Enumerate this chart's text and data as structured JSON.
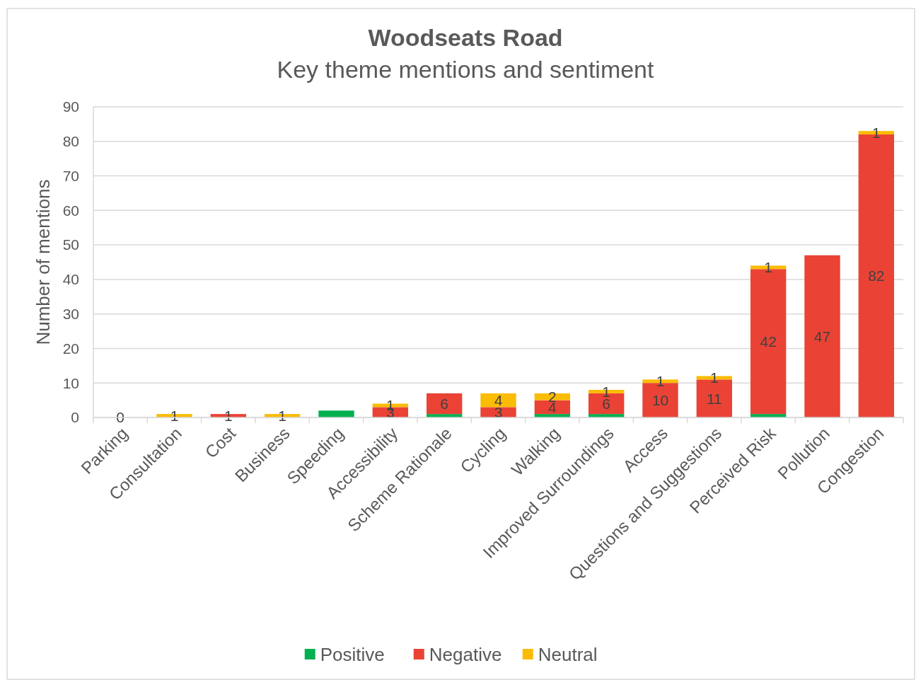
{
  "chart_data": {
    "type": "bar",
    "title": "Woodseats Road",
    "subtitle": "Key theme mentions and sentiment",
    "ylabel": "Number of mentions",
    "categories": [
      "Parking",
      "Consultation",
      "Cost",
      "Business",
      "Speeding",
      "Accessibility",
      "Scheme Rationale",
      "Cycling",
      "Walking",
      "Improved Surroundings",
      "Access",
      "Questions and Suggestions",
      "Perceived Risk",
      "Pollution",
      "Congestion"
    ],
    "stacked": true,
    "series": [
      {
        "name": "Positive",
        "color": "#00b050",
        "values": [
          0,
          null,
          null,
          null,
          2,
          null,
          1,
          null,
          1,
          1,
          null,
          null,
          1,
          null,
          null
        ],
        "value_labels": [
          "0",
          null,
          null,
          null,
          null,
          null,
          null,
          null,
          null,
          null,
          null,
          null,
          null,
          null,
          null
        ]
      },
      {
        "name": "Negative",
        "color": "#ea4335",
        "values": [
          null,
          null,
          1,
          null,
          null,
          3,
          6,
          3,
          4,
          6,
          10,
          11,
          42,
          47,
          82
        ],
        "value_labels": [
          null,
          null,
          "1",
          null,
          null,
          "3",
          "6",
          "3",
          "4",
          "6",
          "10",
          "11",
          "42",
          "47",
          "82"
        ]
      },
      {
        "name": "Neutral",
        "color": "#fbbc04",
        "values": [
          null,
          1,
          null,
          1,
          null,
          1,
          null,
          4,
          2,
          1,
          1,
          1,
          1,
          null,
          1
        ],
        "value_labels": [
          null,
          "1",
          null,
          "1",
          null,
          "1",
          null,
          "4",
          "2",
          "1",
          "1",
          "1",
          "1",
          null,
          "1"
        ]
      }
    ],
    "ylim": [
      0,
      90
    ],
    "yticks": [
      0,
      10,
      20,
      30,
      40,
      50,
      60,
      70,
      80,
      90
    ],
    "grid": "y",
    "legend": "bottom"
  }
}
